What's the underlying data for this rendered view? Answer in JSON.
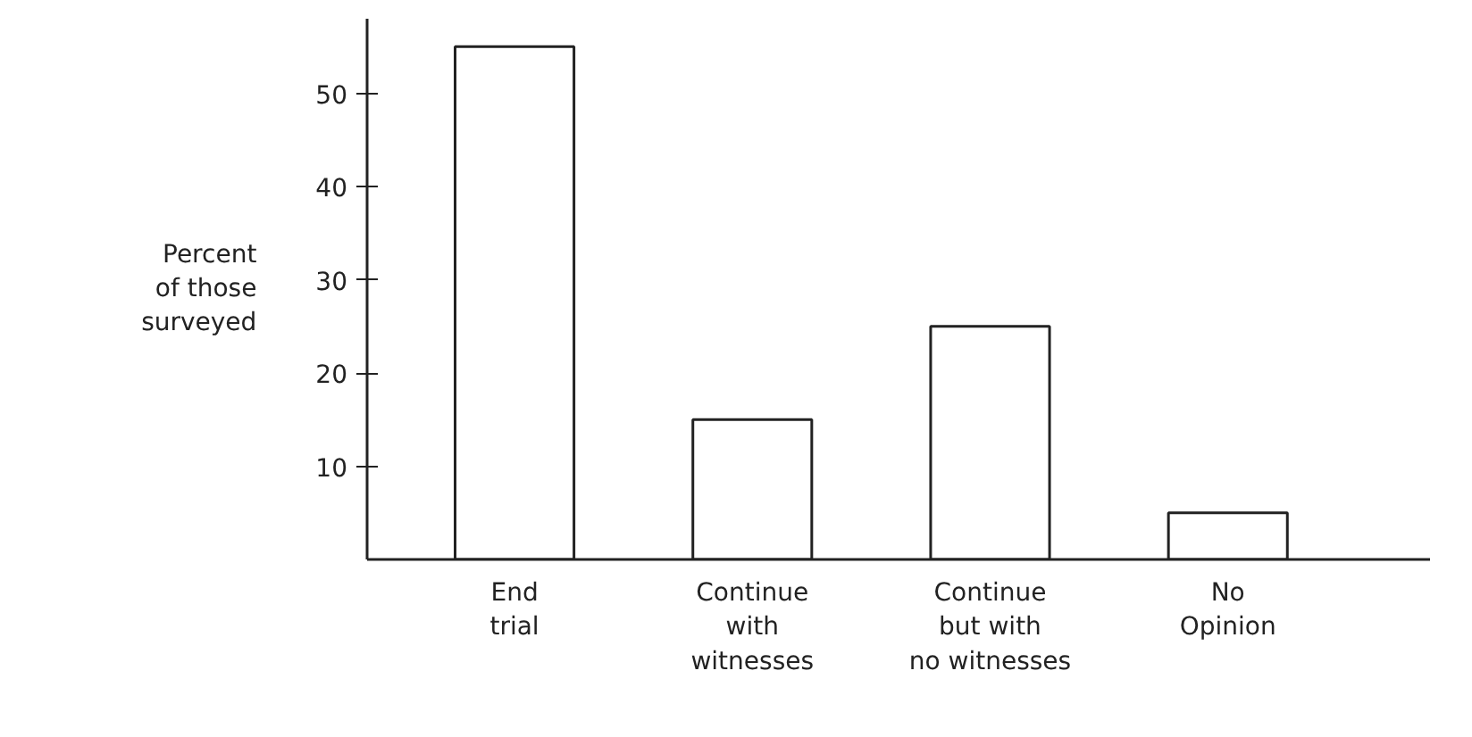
{
  "chart_data": {
    "type": "bar",
    "ylabel": "Percent\nof those\nsurveyed",
    "categories": [
      "End\ntrial",
      "Continue\nwith\nwitnesses",
      "Continue\nbut with\nno witnesses",
      "No\nOpinion"
    ],
    "values": [
      55,
      15,
      25,
      5
    ],
    "color": "#ffffff",
    "ylim": [
      0,
      58
    ],
    "yticks": [
      10,
      20,
      30,
      40,
      50
    ],
    "grid": false
  }
}
